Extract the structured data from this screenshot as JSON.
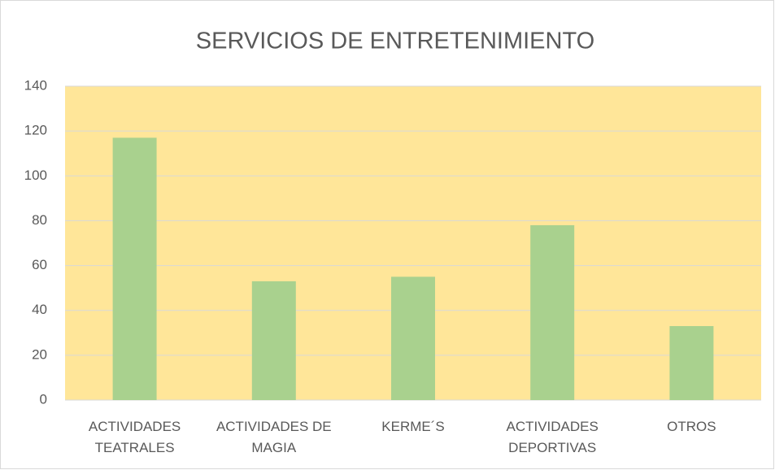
{
  "chart_data": {
    "type": "bar",
    "title": "SERVICIOS DE ENTRETENIMIENTO",
    "categories": [
      "ACTIVIDADES TEATRALES",
      "ACTIVIDADES DE MAGIA",
      "KERME´S",
      "ACTIVIDADES DEPORTIVAS",
      "OTROS"
    ],
    "values": [
      117,
      53,
      55,
      78,
      33
    ],
    "color": "#a9d18e",
    "plot_background": "#ffe699",
    "ylim": [
      0,
      140
    ],
    "yticks": [
      0,
      20,
      40,
      60,
      80,
      100,
      120,
      140
    ],
    "grid": true
  }
}
